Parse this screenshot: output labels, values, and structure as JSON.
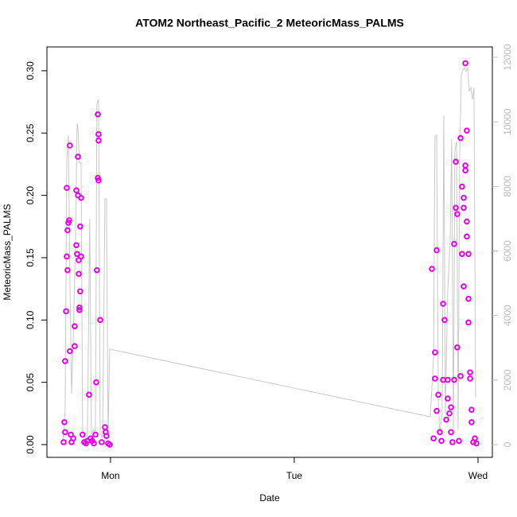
{
  "chart_data": {
    "type": "scatter",
    "title": "ATOM2 Northeast_Pacific_2 MeteoricMass_PALMS",
    "x_label": "Date",
    "y_label": "MeteoricMass_PALMS",
    "xlim": [
      -0.346,
      2.078
    ],
    "xticks": [
      {
        "value": 0,
        "label": "Mon"
      },
      {
        "value": 1,
        "label": "Tue"
      },
      {
        "value": 2,
        "label": "Wed"
      }
    ],
    "ylim": [
      -0.0102,
      0.3191
    ],
    "yticks": [
      {
        "value": 0,
        "label": "0.00"
      },
      {
        "value": 0.05,
        "label": "0.05"
      },
      {
        "value": 0.1,
        "label": "0.10"
      },
      {
        "value": 0.15,
        "label": "0.15"
      },
      {
        "value": 0.2,
        "label": "0.20"
      },
      {
        "value": 0.25,
        "label": "0.25"
      },
      {
        "value": 0.3,
        "label": "0.30"
      }
    ],
    "y2lim": [
      -394,
      12320
    ],
    "y2ticks": [
      0,
      2000,
      4000,
      6000,
      8000,
      10000,
      12000
    ],
    "series": [
      {
        "type": "line",
        "axis": "y2",
        "color": "#c8c8c8",
        "x": [
          -0.26,
          -0.247,
          -0.238,
          -0.229,
          -0.221,
          -0.212,
          -0.203,
          -0.19,
          -0.182,
          -0.177,
          -0.169,
          -0.16,
          -0.152,
          -0.139,
          -0.126,
          -0.113,
          -0.104,
          -0.091,
          -0.082,
          -0.074,
          -0.065,
          -0.056,
          -0.043,
          -0.03,
          -0.022,
          -0.013,
          -0.004,
          1.74,
          1.758,
          1.766,
          1.775,
          1.784,
          1.792,
          1.805,
          1.814,
          1.822,
          1.835,
          1.848,
          1.857,
          1.866,
          1.874,
          1.883,
          1.892,
          1.9,
          1.909,
          1.918,
          1.926,
          1.935,
          1.944,
          1.952,
          1.961,
          1.97,
          1.978,
          1.987
        ],
        "values": [
          99,
          1035,
          8846,
          9585,
          5051,
          1577,
          3178,
          6382,
          9955,
          9831,
          8723,
          8723,
          468,
          99,
          99,
          6998,
          345,
          468,
          222,
          10571,
          10694,
          345,
          222,
          7614,
          7614,
          345,
          2957,
          862,
          2686,
          9536,
          9585,
          1331,
          345,
          961,
          10201,
          961,
          4780,
          6259,
          9462,
          468,
          9092,
          9388,
          468,
          8846,
          11433,
          11605,
          11679,
          11556,
          11679,
          10940,
          11063,
          10694,
          11063,
          1454
        ]
      },
      {
        "type": "scatter",
        "color": "#e600e6",
        "x": [
          -0.255,
          -0.251,
          -0.247,
          -0.247,
          -0.242,
          -0.238,
          -0.238,
          -0.234,
          -0.234,
          -0.229,
          -0.225,
          -0.221,
          -0.221,
          -0.216,
          -0.212,
          -0.203,
          -0.195,
          -0.195,
          -0.186,
          -0.186,
          -0.182,
          -0.177,
          -0.177,
          -0.173,
          -0.173,
          -0.169,
          -0.169,
          -0.165,
          -0.165,
          -0.16,
          -0.16,
          -0.152,
          -0.143,
          -0.134,
          -0.126,
          -0.117,
          -0.108,
          -0.1,
          -0.091,
          -0.082,
          -0.078,
          -0.074,
          -0.069,
          -0.065,
          -0.065,
          -0.069,
          -0.065,
          -0.056,
          -0.048,
          -0.03,
          -0.026,
          -0.022,
          -0.013,
          -0.004,
          1.749,
          1.758,
          1.766,
          1.766,
          1.775,
          1.775,
          1.784,
          1.792,
          1.801,
          1.81,
          1.81,
          1.818,
          1.827,
          1.835,
          1.835,
          1.844,
          1.853,
          1.853,
          1.861,
          1.87,
          1.87,
          1.879,
          1.879,
          1.887,
          1.887,
          1.896,
          1.905,
          1.905,
          1.913,
          1.913,
          1.922,
          1.922,
          1.922,
          1.931,
          1.931,
          1.931,
          1.939,
          1.939,
          1.939,
          1.948,
          1.948,
          1.948,
          1.957,
          1.957,
          1.965,
          1.974,
          1.983,
          1.991,
          1.965
        ],
        "values": [
          0.002,
          0.018,
          0.01,
          0.067,
          0.107,
          0.151,
          0.206,
          0.172,
          0.14,
          0.178,
          0.18,
          0.24,
          0.075,
          0.008,
          0.002,
          0.005,
          0.079,
          0.095,
          0.16,
          0.204,
          0.153,
          0.231,
          0.2,
          0.137,
          0.148,
          0.108,
          0.11,
          0.123,
          0.175,
          0.151,
          0.198,
          0.008,
          0.002,
          0.001,
          0.003,
          0.04,
          0.005,
          0.003,
          0.001,
          0.008,
          0.05,
          0.14,
          0.265,
          0.244,
          0.249,
          0.214,
          0.212,
          0.1,
          0.002,
          0.014,
          0.01,
          0.007,
          0.001,
          0.0,
          0.141,
          0.005,
          0.074,
          0.053,
          0.156,
          0.027,
          0.04,
          0.01,
          0.003,
          0.052,
          0.113,
          0.1,
          0.02,
          0.052,
          0.037,
          0.025,
          0.03,
          0.01,
          0.002,
          0.052,
          0.161,
          0.227,
          0.19,
          0.185,
          0.078,
          0.003,
          0.055,
          0.246,
          0.207,
          0.153,
          0.198,
          0.19,
          0.127,
          0.224,
          0.22,
          0.306,
          0.252,
          0.179,
          0.167,
          0.153,
          0.117,
          0.098,
          0.058,
          0.053,
          0.018,
          0.002,
          0.005,
          0.001,
          0.028
        ]
      }
    ]
  }
}
